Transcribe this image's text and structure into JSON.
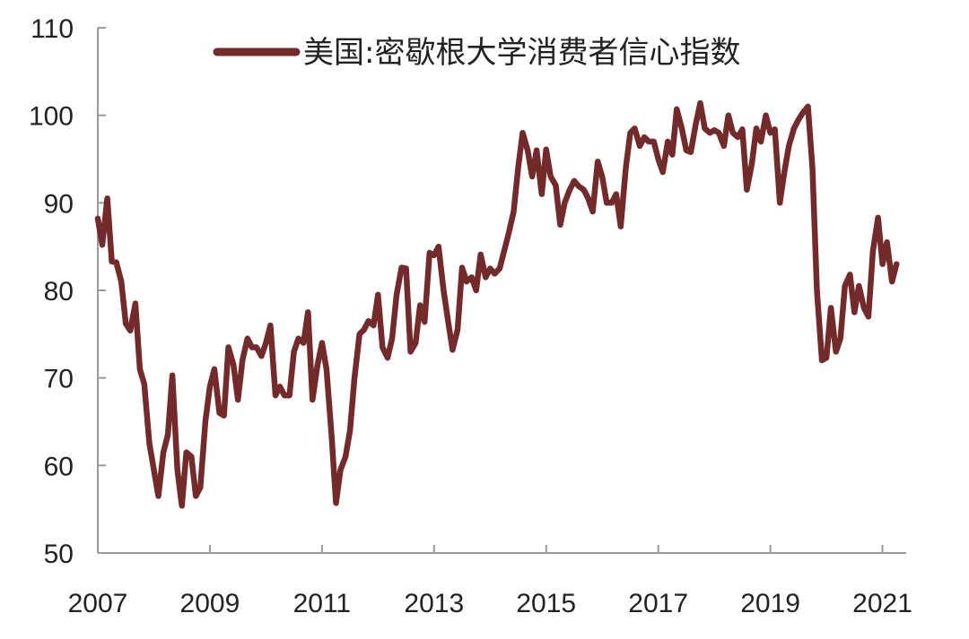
{
  "chart_data": {
    "type": "line",
    "title": "",
    "xlabel": "",
    "ylabel": "",
    "xlim": [
      2007,
      2021.3
    ],
    "ylim": [
      50,
      110
    ],
    "x_ticks": [
      2007,
      2009,
      2011,
      2013,
      2015,
      2017,
      2019,
      2021
    ],
    "x_tick_labels": [
      "2007",
      "2009",
      "2011",
      "2013",
      "2015",
      "2017",
      "2019",
      "2021"
    ],
    "y_ticks": [
      50,
      60,
      70,
      80,
      90,
      100,
      110
    ],
    "y_tick_labels": [
      "50",
      "60",
      "70",
      "80",
      "90",
      "100",
      "110"
    ],
    "grid": false,
    "legend_position": "top",
    "series": [
      {
        "name": "美国:密歇根大学消费者信心指数",
        "color": "#722a2b",
        "x": [
          2007.0,
          2007.08,
          2007.17,
          2007.25,
          2007.33,
          2007.42,
          2007.5,
          2007.58,
          2007.67,
          2007.75,
          2007.83,
          2007.92,
          2008.0,
          2008.08,
          2008.17,
          2008.25,
          2008.33,
          2008.42,
          2008.5,
          2008.58,
          2008.67,
          2008.75,
          2008.83,
          2008.92,
          2009.0,
          2009.08,
          2009.17,
          2009.25,
          2009.33,
          2009.42,
          2009.5,
          2009.58,
          2009.67,
          2009.75,
          2009.83,
          2009.92,
          2010.0,
          2010.08,
          2010.17,
          2010.25,
          2010.33,
          2010.42,
          2010.5,
          2010.58,
          2010.67,
          2010.75,
          2010.83,
          2010.92,
          2011.0,
          2011.08,
          2011.17,
          2011.25,
          2011.33,
          2011.42,
          2011.5,
          2011.58,
          2011.67,
          2011.75,
          2011.83,
          2011.92,
          2012.0,
          2012.08,
          2012.17,
          2012.25,
          2012.33,
          2012.42,
          2012.5,
          2012.58,
          2012.67,
          2012.75,
          2012.83,
          2012.92,
          2013.0,
          2013.08,
          2013.17,
          2013.25,
          2013.33,
          2013.42,
          2013.5,
          2013.58,
          2013.67,
          2013.75,
          2013.83,
          2013.92,
          2014.0,
          2014.08,
          2014.17,
          2014.25,
          2014.33,
          2014.42,
          2014.5,
          2014.58,
          2014.67,
          2014.75,
          2014.83,
          2014.92,
          2015.0,
          2015.08,
          2015.17,
          2015.25,
          2015.33,
          2015.42,
          2015.5,
          2015.58,
          2015.67,
          2015.75,
          2015.83,
          2015.92,
          2016.0,
          2016.08,
          2016.17,
          2016.25,
          2016.33,
          2016.42,
          2016.5,
          2016.58,
          2016.67,
          2016.75,
          2016.83,
          2016.92,
          2017.0,
          2017.08,
          2017.17,
          2017.25,
          2017.33,
          2017.42,
          2017.5,
          2017.58,
          2017.67,
          2017.75,
          2017.83,
          2017.92,
          2018.0,
          2018.08,
          2018.17,
          2018.25,
          2018.33,
          2018.42,
          2018.5,
          2018.58,
          2018.67,
          2018.75,
          2018.83,
          2018.92,
          2019.0,
          2019.08,
          2019.17,
          2019.25,
          2019.33,
          2019.42,
          2019.5,
          2019.58,
          2019.67,
          2019.75,
          2019.83,
          2019.92,
          2020.0,
          2020.08,
          2020.17,
          2020.25,
          2020.33,
          2020.42,
          2020.5,
          2020.58,
          2020.67,
          2020.75,
          2020.83,
          2020.92,
          2021.0,
          2021.08,
          2021.17,
          2021.25
        ],
        "values": [
          88.2,
          85.2,
          90.5,
          83.3,
          83.2,
          81.0,
          76.2,
          75.4,
          78.5,
          71.0,
          69.3,
          62.5,
          59.5,
          56.5,
          61.5,
          63.5,
          70.3,
          59.5,
          55.4,
          61.5,
          61.0,
          56.5,
          57.5,
          65.0,
          69.0,
          71.0,
          66.0,
          65.7,
          73.5,
          71.5,
          67.5,
          72.0,
          74.5,
          73.5,
          73.5,
          72.5,
          74.0,
          76.0,
          68.0,
          69.0,
          68.0,
          68.0,
          73.0,
          74.5,
          74.0,
          77.5,
          67.5,
          71.5,
          74.0,
          71.0,
          63.5,
          55.7,
          59.5,
          61.0,
          64.0,
          70.0,
          75.0,
          75.5,
          76.5,
          76.0,
          79.5,
          73.5,
          72.3,
          74.5,
          79.5,
          82.6,
          82.5,
          73.0,
          74.0,
          78.3,
          76.4,
          84.3,
          84.0,
          85.0,
          80.0,
          76.5,
          73.2,
          75.5,
          82.6,
          81.0,
          81.5,
          80.0,
          84.1,
          81.5,
          82.5,
          81.9,
          82.5,
          84.5,
          86.5,
          89.0,
          94.0,
          98.0,
          96.0,
          93.0,
          96.0,
          91.0,
          96.1,
          93.0,
          92.0,
          87.5,
          90.0,
          91.5,
          92.5,
          91.9,
          91.5,
          90.5,
          89.0,
          94.7,
          93.0,
          90.0,
          90.0,
          91.0,
          87.3,
          94.0,
          98.0,
          98.5,
          96.5,
          97.5,
          97.0,
          97.0,
          95.0,
          93.5,
          97.0,
          95.5,
          100.7,
          98.5,
          96.0,
          95.8,
          99.0,
          101.4,
          98.5,
          98.0,
          98.3,
          98.0,
          96.5,
          100.0,
          98.0,
          97.5,
          98.4,
          91.5,
          94.5,
          98.5,
          97.0,
          100.0,
          98.0,
          98.4,
          90.0,
          93.5,
          96.5,
          98.5,
          99.5,
          100.3,
          101.0,
          94.0,
          80.0,
          72.0,
          72.3,
          78.0,
          73.0,
          74.5,
          80.5,
          81.8,
          77.5,
          80.5,
          78.0,
          77.0,
          84.5,
          88.3,
          83.0,
          85.5,
          81.0,
          83.0
        ]
      }
    ]
  }
}
